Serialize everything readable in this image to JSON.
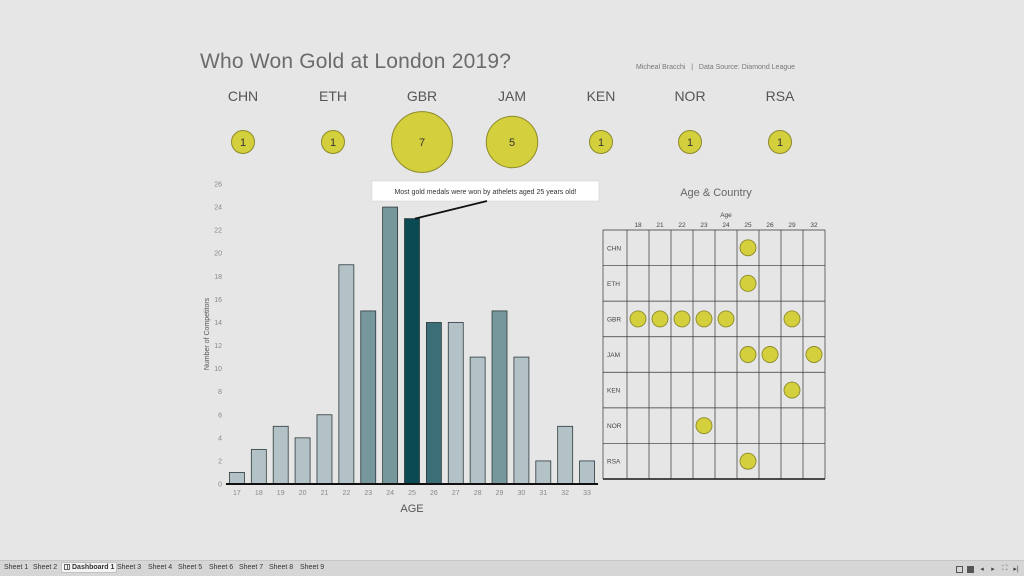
{
  "title": "Who Won Gold at London 2019?",
  "byline": "Micheal Bracchi   |   Data Source: Diamond League",
  "countries": [
    {
      "code": "CHN",
      "medals": 1
    },
    {
      "code": "ETH",
      "medals": 1
    },
    {
      "code": "GBR",
      "medals": 7
    },
    {
      "code": "JAM",
      "medals": 5
    },
    {
      "code": "KEN",
      "medals": 1
    },
    {
      "code": "NOR",
      "medals": 1
    },
    {
      "code": "RSA",
      "medals": 1
    }
  ],
  "colors": {
    "bubble": "#d4cf3c",
    "bubble_stroke": "#8c8a2a",
    "bar_light": "#b3c2c7",
    "bar_mid": "#76979c",
    "bar_dark": "#3b6e76",
    "bar_darkest": "#0a4a52"
  },
  "chart_data": [
    {
      "type": "bar",
      "title": "",
      "xlabel": "AGE",
      "ylabel": "Number of Competitors",
      "ylim": [
        0,
        26
      ],
      "yticks": [
        0,
        2,
        4,
        6,
        8,
        10,
        12,
        14,
        16,
        18,
        20,
        22,
        24,
        26
      ],
      "categories": [
        "17",
        "18",
        "19",
        "20",
        "21",
        "22",
        "23",
        "24",
        "25",
        "26",
        "27",
        "28",
        "29",
        "30",
        "31",
        "32",
        "33"
      ],
      "values": [
        1,
        3,
        5,
        4,
        6,
        19,
        15,
        24,
        23,
        14,
        14,
        11,
        15,
        11,
        2,
        5,
        2
      ],
      "shade": [
        "light",
        "light",
        "light",
        "light",
        "light",
        "light",
        "mid",
        "mid",
        "darkest",
        "dark",
        "light",
        "light",
        "mid",
        "light",
        "light",
        "light",
        "light"
      ],
      "annotation": {
        "text": "Most gold medals were won by athelets aged 25 years old!",
        "target_category": "25"
      }
    },
    {
      "type": "scatter",
      "title": "Age & Country",
      "xlabel": "Age",
      "x_categories": [
        "18",
        "21",
        "22",
        "23",
        "24",
        "25",
        "26",
        "29",
        "32"
      ],
      "y_categories": [
        "CHN",
        "ETH",
        "GBR",
        "JAM",
        "KEN",
        "NOR",
        "RSA"
      ],
      "points": [
        {
          "country": "CHN",
          "age": "25"
        },
        {
          "country": "ETH",
          "age": "25"
        },
        {
          "country": "GBR",
          "age": "18"
        },
        {
          "country": "GBR",
          "age": "21"
        },
        {
          "country": "GBR",
          "age": "22"
        },
        {
          "country": "GBR",
          "age": "23"
        },
        {
          "country": "GBR",
          "age": "24"
        },
        {
          "country": "GBR",
          "age": "29"
        },
        {
          "country": "JAM",
          "age": "25"
        },
        {
          "country": "JAM",
          "age": "26"
        },
        {
          "country": "JAM",
          "age": "32"
        },
        {
          "country": "KEN",
          "age": "29"
        },
        {
          "country": "NOR",
          "age": "23"
        },
        {
          "country": "RSA",
          "age": "25"
        }
      ]
    }
  ],
  "tabs": [
    "Sheet 1",
    "Sheet 2",
    "Dashboard 1",
    "Sheet 3",
    "Sheet 4",
    "Sheet 5",
    "Sheet 6",
    "Sheet 7",
    "Sheet 8",
    "Sheet 9"
  ],
  "active_tab": "Dashboard 1",
  "nav_icons": [
    "grid-view-icon",
    "filmstrip-view-icon",
    "first-page-icon",
    "previous-page-icon",
    "next-page-icon",
    "fullscreen-icon",
    "last-page-icon"
  ]
}
